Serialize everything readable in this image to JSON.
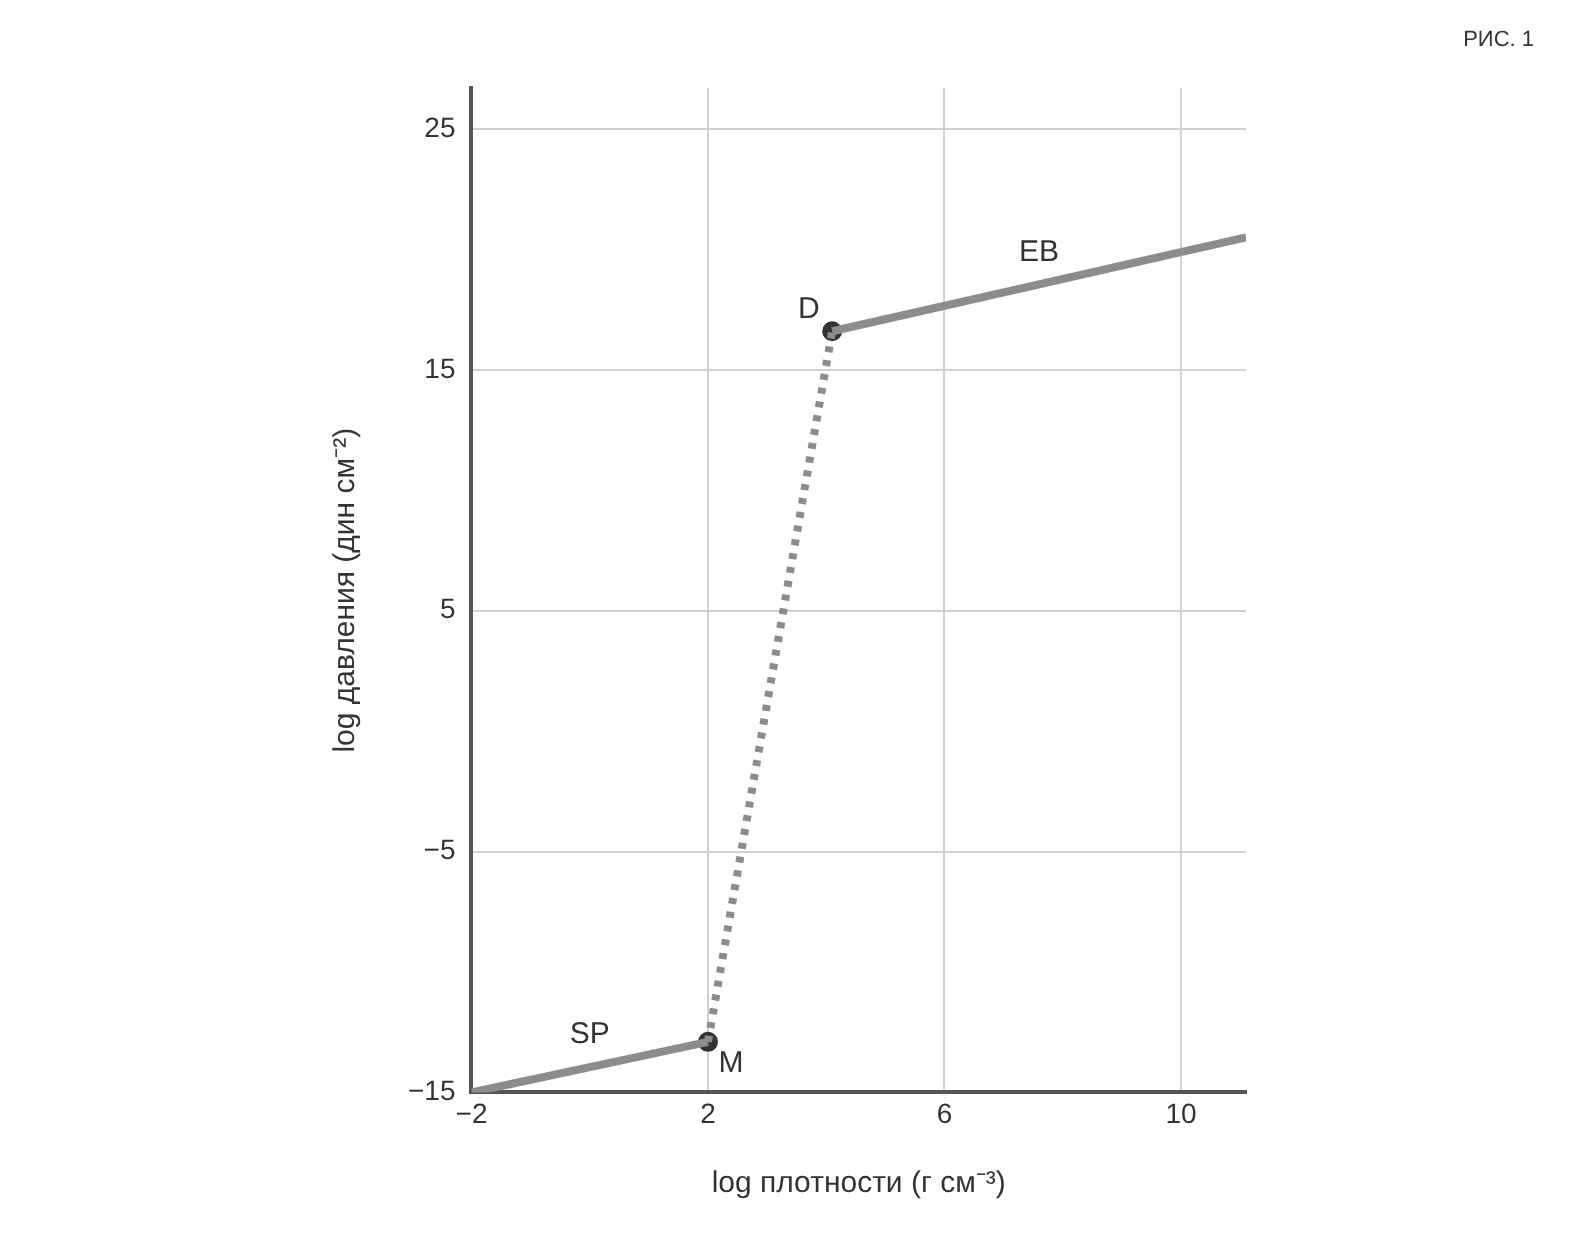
{
  "chart_data": {
    "type": "line",
    "xlabel": "log плотности (г см⁻³)",
    "ylabel": "log давления (дин см⁻²)",
    "xlim": [
      -2,
      11.1
    ],
    "xticks": [
      -2,
      2,
      6,
      10
    ],
    "ylim": [
      -15,
      26.7
    ],
    "yticks": [
      -15,
      -5,
      5,
      15,
      25
    ],
    "grid": true,
    "legend": false,
    "series": [
      {
        "color": "#8c8c8c",
        "x": [
          -2,
          2
        ],
        "values": [
          -15,
          -12.9
        ],
        "line_style": "solid",
        "marker": "none"
      },
      {
        "color": "#8c8c8c",
        "x": [
          2,
          4.1
        ],
        "values": [
          -12.9,
          16.6
        ],
        "line_style": "dotted",
        "marker": "none"
      },
      {
        "color": "#8c8c8c",
        "x": [
          4.1,
          11.1
        ],
        "values": [
          16.6,
          20.5
        ],
        "line_style": "solid",
        "marker": "none"
      },
      {
        "type": "scatter",
        "color": "#333333",
        "x": [
          2,
          4.1
        ],
        "values": [
          -12.9,
          16.6
        ],
        "marker": "circle"
      }
    ],
    "annotations": [
      "РИС. 1",
      {
        "text": "SP",
        "x": 0,
        "y": -13.95
      },
      {
        "text": "M",
        "x": 2,
        "y": -12.9
      },
      {
        "text": "D",
        "x": 4.1,
        "y": 16.6
      },
      {
        "text": "EB",
        "x": 7.6,
        "y": 18.55
      }
    ]
  }
}
